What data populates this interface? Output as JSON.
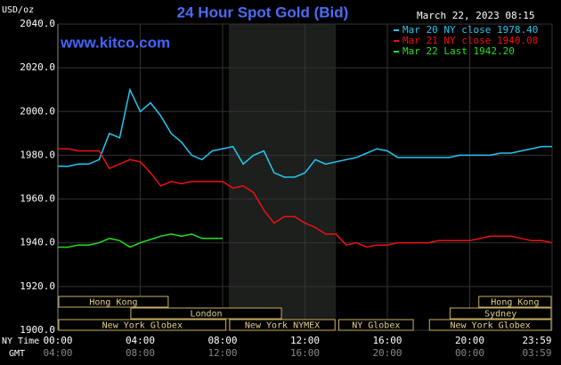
{
  "chart_data": {
    "type": "line",
    "title": "24 Hour Spot Gold (Bid)",
    "subtitle": "March 22, 2023 08:15",
    "source": "www.kitco.com",
    "y_label": "USD/oz",
    "x_label": "NY Time",
    "x2_label": "GMT",
    "x": [
      0,
      0.5,
      1,
      1.5,
      2,
      2.5,
      3,
      3.5,
      4,
      4.5,
      5,
      5.5,
      6,
      6.5,
      7,
      7.5,
      8,
      8.5,
      9,
      9.5,
      10,
      10.5,
      11,
      11.5,
      12,
      12.5,
      13,
      13.5,
      14,
      14.5,
      15,
      15.5,
      16,
      16.5,
      17,
      17.5,
      18,
      18.5,
      19,
      19.5,
      20,
      20.5,
      21,
      21.5,
      22,
      22.5,
      23,
      23.5,
      24
    ],
    "series": [
      {
        "name": "Mar 20 NY close 1978.40",
        "color": "#22c8f0",
        "values": [
          1975,
          1975,
          1976,
          1976,
          1978,
          1990,
          1988,
          2010,
          2000,
          2004,
          1998,
          1990,
          1986,
          1980,
          1978,
          1982,
          1983,
          1984,
          1976,
          1980,
          1982,
          1972,
          1970,
          1970,
          1972,
          1978,
          1976,
          1977,
          1978,
          1979,
          1981,
          1983,
          1982,
          1979,
          1979,
          1979,
          1979,
          1979,
          1979,
          1980,
          1980,
          1980,
          1980,
          1981,
          1981,
          1982,
          1983,
          1984,
          1984
        ]
      },
      {
        "name": "Mar 21 NY close 1940.00",
        "color": "#ee1111",
        "values": [
          1983,
          1983,
          1982,
          1982,
          1982,
          1974,
          1976,
          1978,
          1977,
          1972,
          1966,
          1968,
          1967,
          1968,
          1968,
          1968,
          1968,
          1965,
          1966,
          1963,
          1955,
          1949,
          1952,
          1952,
          1949,
          1947,
          1944,
          1944,
          1939,
          1940,
          1938,
          1939,
          1939,
          1940,
          1940,
          1940,
          1940,
          1941,
          1941,
          1941,
          1941,
          1942,
          1943,
          1943,
          1943,
          1942,
          1941,
          1941,
          1940
        ]
      },
      {
        "name": "Mar 22 Last 1942.20",
        "color": "#22e022",
        "values": [
          1938,
          1938,
          1939,
          1939,
          1940,
          1942,
          1941,
          1938,
          1940,
          1941.5,
          1943,
          1944,
          1943,
          1944,
          1942,
          1942,
          1942,
          null,
          null,
          null,
          null,
          null,
          null,
          null,
          null,
          null,
          null,
          null,
          null,
          null,
          null,
          null,
          null,
          null,
          null,
          null,
          null,
          null,
          null,
          null,
          null,
          null,
          null,
          null,
          null,
          null,
          null,
          null,
          null
        ]
      }
    ],
    "xlim": [
      0,
      24
    ],
    "xticks": [
      {
        "value": 0,
        "label": "00:00"
      },
      {
        "value": 4,
        "label": "04:00"
      },
      {
        "value": 8,
        "label": "08:00"
      },
      {
        "value": 12,
        "label": "12:00"
      },
      {
        "value": 16,
        "label": "16:00"
      },
      {
        "value": 20,
        "label": "20:00"
      },
      {
        "value": 24,
        "label": "23:59"
      }
    ],
    "x2ticks": [
      {
        "value": 0,
        "label": "04:00"
      },
      {
        "value": 4,
        "label": "08:00"
      },
      {
        "value": 8,
        "label": "12:00"
      },
      {
        "value": 12,
        "label": "16:00"
      },
      {
        "value": 16,
        "label": "20:00"
      },
      {
        "value": 20,
        "label": "00:00"
      },
      {
        "value": 24,
        "label": "03:59"
      }
    ],
    "ylim": [
      1900,
      2040
    ],
    "yticks": [
      {
        "value": 1900,
        "label": "1900.0"
      },
      {
        "value": 1920,
        "label": "1920.0"
      },
      {
        "value": 1940,
        "label": "1940.0"
      },
      {
        "value": 1960,
        "label": "1960.0"
      },
      {
        "value": 1980,
        "label": "1980.0"
      },
      {
        "value": 2000,
        "label": "2000.0"
      },
      {
        "value": 2020,
        "label": "2020.0"
      },
      {
        "value": 2040,
        "label": "2040.0"
      }
    ],
    "grid": true,
    "highlight_x": [
      8.3,
      13.5
    ],
    "sessions": [
      {
        "name": "Hong Kong",
        "start": 0,
        "end": 5.4,
        "row": 0
      },
      {
        "name": "London",
        "start": 3.5,
        "end": 10.9,
        "row": 1
      },
      {
        "name": "New York Globex",
        "start": 0,
        "end": 8.2,
        "row": 2
      },
      {
        "name": "New York NYMEX",
        "start": 8.3,
        "end": 13.5,
        "row": 2
      },
      {
        "name": "NY Globex",
        "start": 13.6,
        "end": 17.3,
        "row": 2
      },
      {
        "name": "Hong Kong",
        "start": 20.4,
        "end": 24,
        "row": 0
      },
      {
        "name": "Sydney",
        "start": 19,
        "end": 24,
        "row": 1
      },
      {
        "name": "New York Globex",
        "start": 18,
        "end": 24,
        "row": 2
      }
    ]
  }
}
